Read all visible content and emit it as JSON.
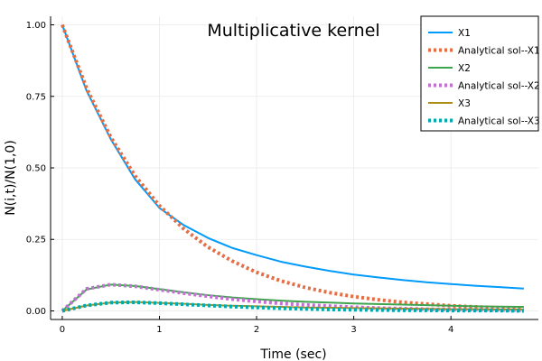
{
  "chart_data": {
    "type": "line",
    "title": "Multiplicative kernel",
    "xlabel": "Time (sec)",
    "ylabel": "N(i,t)/N(1,0)",
    "xlim": [
      -0.12,
      4.9
    ],
    "ylim": [
      -0.03,
      1.03
    ],
    "xticks": [
      0,
      1,
      2,
      3,
      4
    ],
    "xtick_labels": [
      "0",
      "1",
      "2",
      "3",
      "4"
    ],
    "yticks": [
      0,
      0.25,
      0.5,
      0.75,
      1
    ],
    "ytick_labels": [
      "0.00",
      "0.25",
      "0.50",
      "0.75",
      "1.00"
    ],
    "grid": true,
    "legend_position": "top-right",
    "series": [
      {
        "name": "X1",
        "color": "#009AFA",
        "style": "solid",
        "x": [
          0,
          0.25,
          0.5,
          0.75,
          1.0,
          1.25,
          1.5,
          1.75,
          2.0,
          2.25,
          2.5,
          2.75,
          3.0,
          3.25,
          3.5,
          3.75,
          4.0,
          4.25,
          4.5,
          4.75
        ],
        "y": [
          1.0,
          0.77,
          0.6,
          0.46,
          0.36,
          0.3,
          0.255,
          0.22,
          0.195,
          0.172,
          0.155,
          0.14,
          0.127,
          0.117,
          0.108,
          0.1,
          0.094,
          0.088,
          0.083,
          0.078
        ]
      },
      {
        "name": "Analytical sol--X1",
        "color": "#E36F47",
        "style": "dotted",
        "x": [
          0,
          0.25,
          0.5,
          0.75,
          1.0,
          1.25,
          1.5,
          1.75,
          2.0,
          2.25,
          2.5,
          2.75,
          3.0,
          3.25,
          3.5,
          3.75,
          4.0,
          4.25,
          4.5,
          4.75
        ],
        "y": [
          1.0,
          0.779,
          0.607,
          0.472,
          0.368,
          0.287,
          0.223,
          0.174,
          0.135,
          0.105,
          0.082,
          0.064,
          0.05,
          0.039,
          0.03,
          0.024,
          0.018,
          0.014,
          0.011,
          0.009
        ]
      },
      {
        "name": "X2",
        "color": "#3EA44E",
        "style": "solid",
        "x": [
          0,
          0.25,
          0.5,
          0.75,
          1.0,
          1.25,
          1.5,
          1.75,
          2.0,
          2.25,
          2.5,
          2.75,
          3.0,
          3.25,
          3.5,
          3.75,
          4.0,
          4.25,
          4.5,
          4.75
        ],
        "y": [
          0,
          0.075,
          0.092,
          0.087,
          0.076,
          0.065,
          0.055,
          0.047,
          0.041,
          0.036,
          0.032,
          0.029,
          0.026,
          0.024,
          0.022,
          0.02,
          0.018,
          0.016,
          0.015,
          0.014
        ]
      },
      {
        "name": "Analytical sol--X2",
        "color": "#C271D2",
        "style": "dotted",
        "x": [
          0,
          0.25,
          0.5,
          0.75,
          1.0,
          1.25,
          1.5,
          1.75,
          2.0,
          2.25,
          2.5,
          2.75,
          3.0,
          3.25,
          3.5,
          3.75,
          4.0,
          4.25,
          4.5,
          4.75
        ],
        "y": [
          0,
          0.077,
          0.092,
          0.086,
          0.074,
          0.062,
          0.051,
          0.041,
          0.033,
          0.026,
          0.021,
          0.017,
          0.013,
          0.01,
          0.008,
          0.006,
          0.005,
          0.004,
          0.003,
          0.002
        ]
      },
      {
        "name": "X3",
        "color": "#AC8D18",
        "style": "solid",
        "x": [
          0,
          0.25,
          0.5,
          0.75,
          1.0,
          1.25,
          1.5,
          1.75,
          2.0,
          2.25,
          2.5,
          2.75,
          3.0,
          3.25,
          3.5,
          3.75,
          4.0,
          4.25,
          4.5,
          4.75
        ],
        "y": [
          0,
          0.019,
          0.029,
          0.031,
          0.028,
          0.025,
          0.021,
          0.018,
          0.016,
          0.014,
          0.012,
          0.011,
          0.01,
          0.009,
          0.008,
          0.007,
          0.006,
          0.006,
          0.005,
          0.005
        ]
      },
      {
        "name": "Analytical sol--X3",
        "color": "#00A9AD",
        "style": "dotted",
        "x": [
          0,
          0.25,
          0.5,
          0.75,
          1.0,
          1.25,
          1.5,
          1.75,
          2.0,
          2.25,
          2.5,
          2.75,
          3.0,
          3.25,
          3.5,
          3.75,
          4.0,
          4.25,
          4.5,
          4.75
        ],
        "y": [
          0,
          0.019,
          0.029,
          0.03,
          0.027,
          0.023,
          0.019,
          0.015,
          0.012,
          0.009,
          0.007,
          0.005,
          0.004,
          0.003,
          0.002,
          0.002,
          0.001,
          0.001,
          0.001,
          0.0
        ]
      }
    ]
  }
}
